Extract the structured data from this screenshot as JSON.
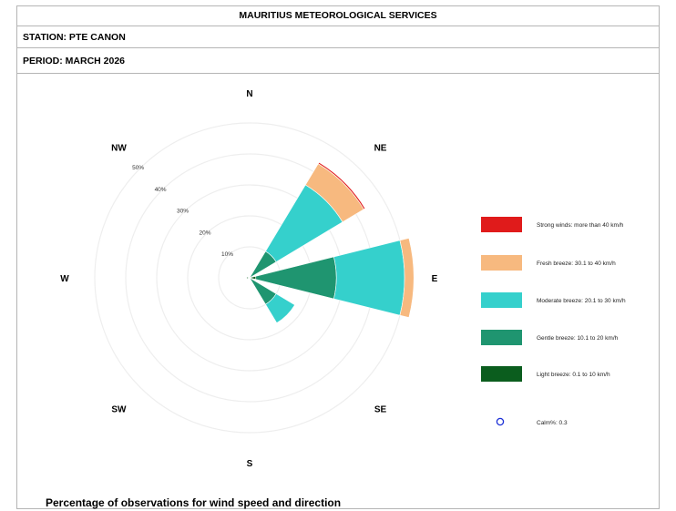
{
  "header": {
    "title": "MAURITIUS METEOROLOGICAL SERVICES",
    "station": "STATION: PTE CANON",
    "period": "PERIOD: MARCH 2026"
  },
  "caption": "Percentage of observations for wind speed and direction",
  "chart_data": {
    "type": "wind-rose",
    "directions": [
      "N",
      "NE",
      "E",
      "SE",
      "S",
      "SW",
      "W",
      "NW"
    ],
    "sector_angles": [
      0,
      45,
      90,
      135,
      180,
      225,
      270,
      315
    ],
    "rings": [
      10,
      20,
      30,
      40,
      50
    ],
    "ring_labels": [
      "10%",
      "20%",
      "30%",
      "40%",
      "50%"
    ],
    "axis_max": 50,
    "speed_classes": [
      {
        "label": "Light breeze: 0.1 to 10 km/h",
        "color": "#0b5d1e"
      },
      {
        "label": "Gentle breeze: 10.1 to 20 km/h",
        "color": "#1f9570"
      },
      {
        "label": "Moderate breeze: 20.1 to 30 km/h",
        "color": "#35d0cc"
      },
      {
        "label": "Fresh breeze: 30.1 to 40 km/h",
        "color": "#f7b97f"
      },
      {
        "label": "Strong winds: more than 40 km/h",
        "color": "#e01b1b"
      }
    ],
    "legend_order": [
      4,
      3,
      2,
      1,
      0
    ],
    "sectors": [
      {
        "direction": "NE",
        "values": [
          0,
          10,
          25,
          8,
          0.5
        ]
      },
      {
        "direction": "E",
        "values": [
          2,
          26,
          22,
          3,
          0
        ]
      },
      {
        "direction": "SE",
        "values": [
          0,
          10,
          7,
          0,
          0
        ]
      },
      {
        "direction": "W",
        "values": [
          1,
          0,
          0,
          0,
          0
        ]
      }
    ],
    "calm_label": "Calm%: 0.3",
    "calm": 0.3
  }
}
